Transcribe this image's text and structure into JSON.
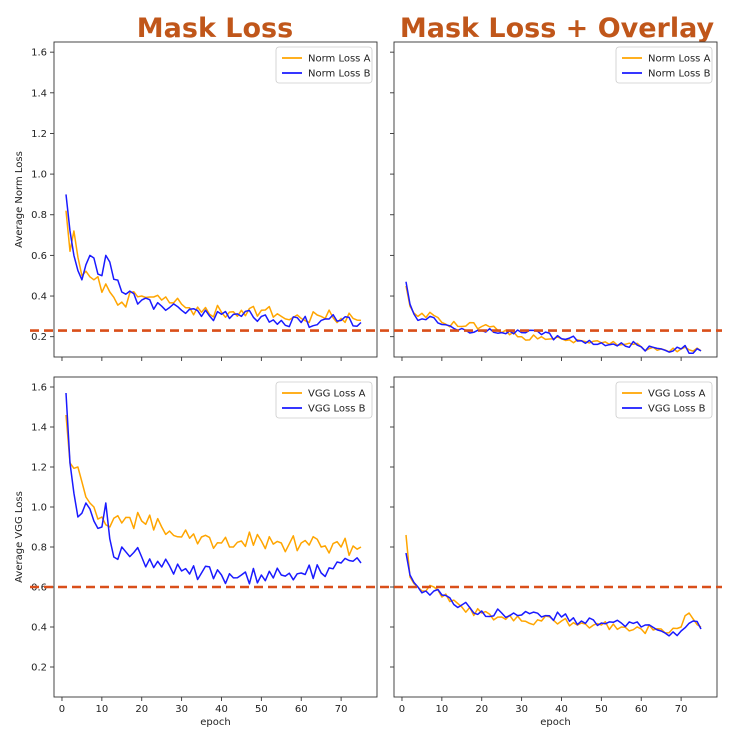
{
  "column_titles": [
    "Mask Loss",
    "Mask Loss + Overlay"
  ],
  "colors": {
    "series_a": "#ffa500",
    "series_b": "#1a1aff",
    "reference_line": "#d94f1a",
    "title": "#c0561a"
  },
  "chart_data": [
    {
      "type": "line",
      "panel": "top-left",
      "ylabel": "Average Norm Loss",
      "xlabel": "",
      "xlim": [
        -2,
        79
      ],
      "ylim": [
        0.1,
        1.65
      ],
      "yticks": [
        0.2,
        0.4,
        0.6,
        0.8,
        1.0,
        1.2,
        1.4,
        1.6
      ],
      "xticks": [
        0,
        10,
        20,
        30,
        40,
        50,
        60,
        70
      ],
      "show_x_tick_labels": false,
      "show_y_tick_labels": true,
      "legend_position": "top-right",
      "reference_line_y": 0.23,
      "series": [
        {
          "name": "Norm Loss A",
          "anchors": [
            [
              1,
              0.82
            ],
            [
              2,
              0.62
            ],
            [
              3,
              0.72
            ],
            [
              5,
              0.5
            ],
            [
              8,
              0.48
            ],
            [
              12,
              0.42
            ],
            [
              15,
              0.37
            ],
            [
              20,
              0.4
            ],
            [
              25,
              0.38
            ],
            [
              30,
              0.36
            ],
            [
              35,
              0.32
            ],
            [
              40,
              0.32
            ],
            [
              45,
              0.33
            ],
            [
              50,
              0.33
            ],
            [
              55,
              0.3
            ],
            [
              60,
              0.29
            ],
            [
              65,
              0.3
            ],
            [
              70,
              0.29
            ],
            [
              75,
              0.28
            ]
          ],
          "noise": 0.035
        },
        {
          "name": "Norm Loss B",
          "anchors": [
            [
              1,
              0.9
            ],
            [
              2,
              0.72
            ],
            [
              3,
              0.6
            ],
            [
              5,
              0.48
            ],
            [
              7,
              0.6
            ],
            [
              10,
              0.5
            ],
            [
              11,
              0.6
            ],
            [
              15,
              0.42
            ],
            [
              20,
              0.38
            ],
            [
              25,
              0.35
            ],
            [
              30,
              0.33
            ],
            [
              35,
              0.3
            ],
            [
              40,
              0.31
            ],
            [
              45,
              0.3
            ],
            [
              50,
              0.3
            ],
            [
              55,
              0.28
            ],
            [
              60,
              0.27
            ],
            [
              65,
              0.28
            ],
            [
              70,
              0.28
            ],
            [
              75,
              0.27
            ]
          ],
          "noise": 0.03
        }
      ]
    },
    {
      "type": "line",
      "panel": "top-right",
      "ylabel": "",
      "xlabel": "",
      "xlim": [
        -2,
        79
      ],
      "ylim": [
        0.1,
        1.65
      ],
      "yticks": [
        0.2,
        0.4,
        0.6,
        0.8,
        1.0,
        1.2,
        1.4,
        1.6
      ],
      "xticks": [
        0,
        10,
        20,
        30,
        40,
        50,
        60,
        70
      ],
      "show_x_tick_labels": false,
      "show_y_tick_labels": false,
      "legend_position": "top-right",
      "reference_line_y": 0.23,
      "series": [
        {
          "name": "Norm Loss A",
          "anchors": [
            [
              1,
              0.45
            ],
            [
              2,
              0.35
            ],
            [
              4,
              0.3
            ],
            [
              7,
              0.32
            ],
            [
              10,
              0.27
            ],
            [
              15,
              0.25
            ],
            [
              20,
              0.25
            ],
            [
              25,
              0.22
            ],
            [
              30,
              0.2
            ],
            [
              35,
              0.2
            ],
            [
              40,
              0.19
            ],
            [
              45,
              0.18
            ],
            [
              50,
              0.17
            ],
            [
              55,
              0.16
            ],
            [
              60,
              0.15
            ],
            [
              65,
              0.14
            ],
            [
              70,
              0.14
            ],
            [
              75,
              0.13
            ]
          ],
          "noise": 0.02
        },
        {
          "name": "Norm Loss B",
          "anchors": [
            [
              1,
              0.47
            ],
            [
              2,
              0.36
            ],
            [
              4,
              0.28
            ],
            [
              7,
              0.3
            ],
            [
              10,
              0.26
            ],
            [
              15,
              0.24
            ],
            [
              20,
              0.23
            ],
            [
              25,
              0.22
            ],
            [
              30,
              0.22
            ],
            [
              35,
              0.21
            ],
            [
              40,
              0.19
            ],
            [
              45,
              0.18
            ],
            [
              50,
              0.17
            ],
            [
              55,
              0.17
            ],
            [
              60,
              0.15
            ],
            [
              65,
              0.14
            ],
            [
              70,
              0.14
            ],
            [
              75,
              0.13
            ]
          ],
          "noise": 0.02
        }
      ]
    },
    {
      "type": "line",
      "panel": "bottom-left",
      "ylabel": "Average VGG Loss",
      "xlabel": "epoch",
      "xlim": [
        -2,
        79
      ],
      "ylim": [
        0.05,
        1.65
      ],
      "yticks": [
        0.2,
        0.4,
        0.6,
        0.8,
        1.0,
        1.2,
        1.4,
        1.6
      ],
      "xticks": [
        0,
        10,
        20,
        30,
        40,
        50,
        60,
        70
      ],
      "show_x_tick_labels": true,
      "show_y_tick_labels": true,
      "legend_position": "top-right",
      "reference_line_y": 0.6,
      "series": [
        {
          "name": "VGG Loss A",
          "anchors": [
            [
              1,
              1.46
            ],
            [
              2,
              1.22
            ],
            [
              4,
              1.2
            ],
            [
              6,
              1.05
            ],
            [
              8,
              1.0
            ],
            [
              10,
              0.95
            ],
            [
              12,
              0.9
            ],
            [
              15,
              0.92
            ],
            [
              20,
              0.93
            ],
            [
              25,
              0.9
            ],
            [
              30,
              0.85
            ],
            [
              35,
              0.85
            ],
            [
              40,
              0.82
            ],
            [
              45,
              0.83
            ],
            [
              50,
              0.83
            ],
            [
              55,
              0.82
            ],
            [
              60,
              0.82
            ],
            [
              65,
              0.8
            ],
            [
              70,
              0.8
            ],
            [
              75,
              0.8
            ]
          ],
          "noise": 0.045
        },
        {
          "name": "VGG Loss B",
          "anchors": [
            [
              1,
              1.57
            ],
            [
              2,
              1.22
            ],
            [
              4,
              0.95
            ],
            [
              6,
              1.02
            ],
            [
              8,
              0.93
            ],
            [
              10,
              0.9
            ],
            [
              11,
              1.02
            ],
            [
              13,
              0.75
            ],
            [
              15,
              0.8
            ],
            [
              20,
              0.75
            ],
            [
              25,
              0.7
            ],
            [
              30,
              0.68
            ],
            [
              35,
              0.67
            ],
            [
              40,
              0.66
            ],
            [
              45,
              0.66
            ],
            [
              50,
              0.66
            ],
            [
              55,
              0.66
            ],
            [
              60,
              0.67
            ],
            [
              65,
              0.67
            ],
            [
              70,
              0.72
            ],
            [
              75,
              0.72
            ]
          ],
          "noise": 0.045
        }
      ]
    },
    {
      "type": "line",
      "panel": "bottom-right",
      "ylabel": "",
      "xlabel": "epoch",
      "xlim": [
        -2,
        79
      ],
      "ylim": [
        0.05,
        1.65
      ],
      "yticks": [
        0.2,
        0.4,
        0.6,
        0.8,
        1.0,
        1.2,
        1.4,
        1.6
      ],
      "xticks": [
        0,
        10,
        20,
        30,
        40,
        50,
        60,
        70
      ],
      "show_x_tick_labels": true,
      "show_y_tick_labels": false,
      "legend_position": "top-right",
      "reference_line_y": 0.6,
      "series": [
        {
          "name": "VGG Loss A",
          "anchors": [
            [
              1,
              0.86
            ],
            [
              2,
              0.65
            ],
            [
              4,
              0.6
            ],
            [
              6,
              0.58
            ],
            [
              8,
              0.6
            ],
            [
              10,
              0.55
            ],
            [
              15,
              0.5
            ],
            [
              20,
              0.47
            ],
            [
              25,
              0.45
            ],
            [
              30,
              0.43
            ],
            [
              35,
              0.43
            ],
            [
              40,
              0.43
            ],
            [
              45,
              0.42
            ],
            [
              50,
              0.41
            ],
            [
              55,
              0.4
            ],
            [
              60,
              0.39
            ],
            [
              65,
              0.39
            ],
            [
              70,
              0.4
            ],
            [
              72,
              0.47
            ],
            [
              75,
              0.4
            ]
          ],
          "noise": 0.025
        },
        {
          "name": "VGG Loss B",
          "anchors": [
            [
              1,
              0.77
            ],
            [
              2,
              0.66
            ],
            [
              4,
              0.6
            ],
            [
              6,
              0.58
            ],
            [
              8,
              0.58
            ],
            [
              10,
              0.56
            ],
            [
              15,
              0.51
            ],
            [
              20,
              0.48
            ],
            [
              25,
              0.47
            ],
            [
              30,
              0.46
            ],
            [
              35,
              0.45
            ],
            [
              40,
              0.45
            ],
            [
              45,
              0.43
            ],
            [
              50,
              0.42
            ],
            [
              55,
              0.42
            ],
            [
              60,
              0.4
            ],
            [
              65,
              0.38
            ],
            [
              70,
              0.38
            ],
            [
              73,
              0.43
            ],
            [
              75,
              0.39
            ]
          ],
          "noise": 0.025
        }
      ]
    }
  ]
}
